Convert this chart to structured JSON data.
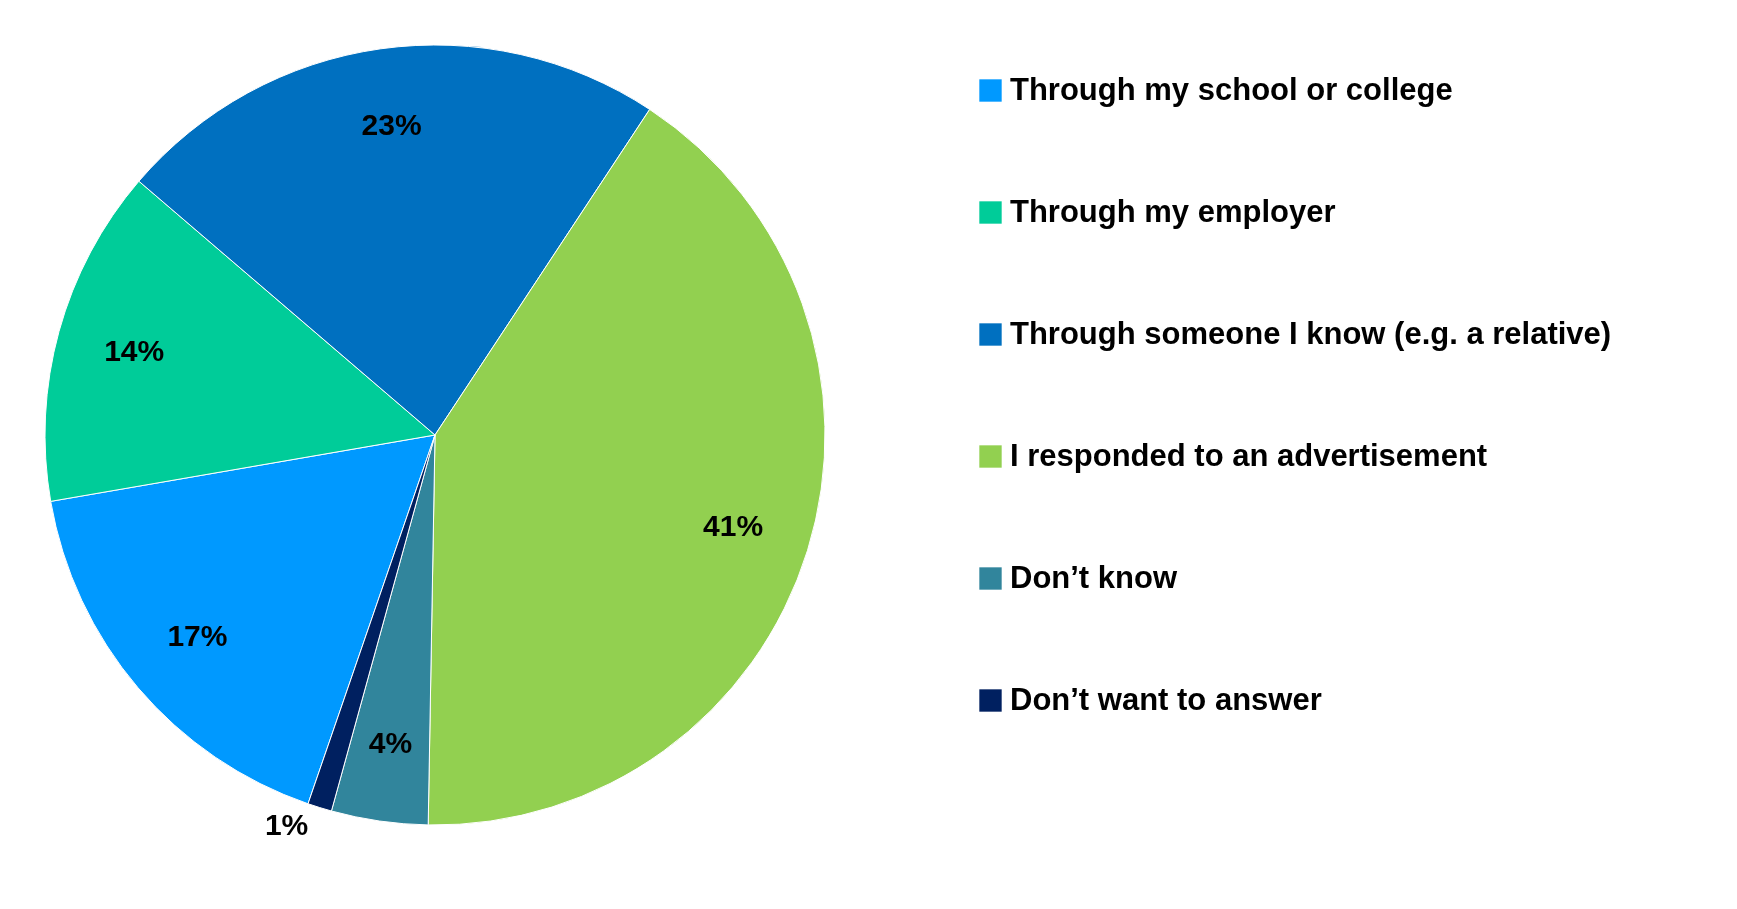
{
  "chart_data": {
    "type": "pie",
    "categories": [
      "Through my school or college",
      "Through my employer",
      "Through someone I know (e.g. a relative)",
      "I responded to an advertisement",
      "Don’t know",
      "Don’t want to answer"
    ],
    "values": [
      17,
      14,
      23,
      41,
      4,
      1
    ],
    "colors": [
      "#0099ff",
      "#00cc99",
      "#0070c0",
      "#92d050",
      "#31859c",
      "#002060"
    ],
    "value_labels": [
      "17%",
      "14%",
      "23%",
      "41%",
      "4%",
      "1%"
    ],
    "legend": "right"
  }
}
